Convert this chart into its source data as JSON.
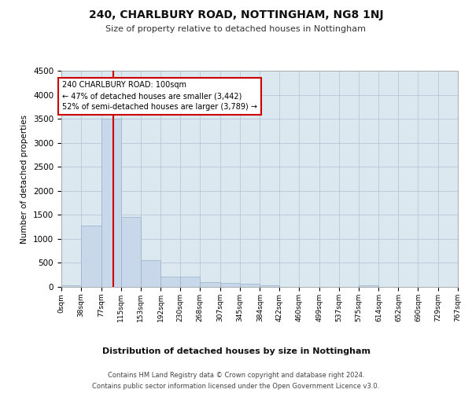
{
  "title": "240, CHARLBURY ROAD, NOTTINGHAM, NG8 1NJ",
  "subtitle": "Size of property relative to detached houses in Nottingham",
  "xlabel": "Distribution of detached houses by size in Nottingham",
  "ylabel": "Number of detached properties",
  "footer_line1": "Contains HM Land Registry data © Crown copyright and database right 2024.",
  "footer_line2": "Contains public sector information licensed under the Open Government Licence v3.0.",
  "bar_color": "#c8d8ea",
  "bar_edge_color": "#9ab0c8",
  "grid_color": "#b8c8d8",
  "background_color": "#dce8f0",
  "bin_edges": [
    0,
    38,
    77,
    115,
    153,
    192,
    230,
    268,
    307,
    345,
    384,
    422,
    460,
    499,
    537,
    575,
    614,
    652,
    690,
    729,
    767
  ],
  "bin_labels": [
    "0sqm",
    "38sqm",
    "77sqm",
    "115sqm",
    "153sqm",
    "192sqm",
    "230sqm",
    "268sqm",
    "307sqm",
    "345sqm",
    "384sqm",
    "422sqm",
    "460sqm",
    "499sqm",
    "537sqm",
    "575sqm",
    "614sqm",
    "652sqm",
    "690sqm",
    "729sqm",
    "767sqm"
  ],
  "bar_heights": [
    30,
    1270,
    3500,
    1450,
    550,
    220,
    220,
    100,
    75,
    65,
    40,
    0,
    0,
    0,
    0,
    30,
    0,
    0,
    0,
    0
  ],
  "red_line_x": 100,
  "annotation_text": "240 CHARLBURY ROAD: 100sqm\n← 47% of detached houses are smaller (3,442)\n52% of semi-detached houses are larger (3,789) →",
  "annotation_box_color": "#ffffff",
  "annotation_box_edge": "#cc0000",
  "red_line_color": "#cc0000",
  "ylim": [
    0,
    4500
  ],
  "yticks": [
    0,
    500,
    1000,
    1500,
    2000,
    2500,
    3000,
    3500,
    4000,
    4500
  ]
}
